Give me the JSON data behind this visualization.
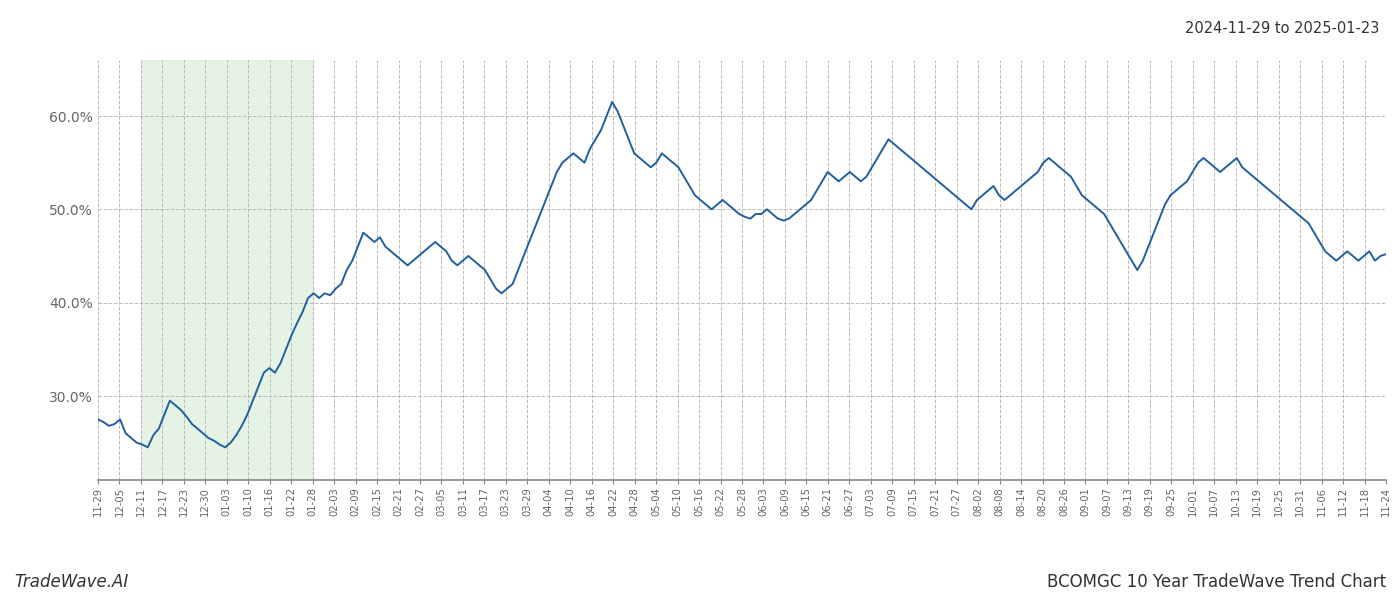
{
  "title_date_range": "2024-11-29 to 2025-01-23",
  "footer_left": "TradeWave.AI",
  "footer_right": "BCOMGC 10 Year TradeWave Trend Chart",
  "background_color": "#ffffff",
  "line_color": "#2060a0",
  "line_width": 1.4,
  "highlight_color": "#c8e6c4",
  "highlight_alpha": 0.45,
  "grid_color": "#bbbbbb",
  "grid_style": "--",
  "ylabel_color": "#666666",
  "ylim": [
    21,
    66
  ],
  "yticks": [
    30,
    40,
    50,
    60
  ],
  "x_labels": [
    "11-29",
    "12-05",
    "12-11",
    "12-17",
    "12-23",
    "12-30",
    "01-03",
    "01-10",
    "01-16",
    "01-22",
    "01-28",
    "02-03",
    "02-09",
    "02-15",
    "02-21",
    "02-27",
    "03-05",
    "03-11",
    "03-17",
    "03-23",
    "03-29",
    "04-04",
    "04-10",
    "04-16",
    "04-22",
    "04-28",
    "05-04",
    "05-10",
    "05-16",
    "05-22",
    "05-28",
    "06-03",
    "06-09",
    "06-15",
    "06-21",
    "06-27",
    "07-03",
    "07-09",
    "07-15",
    "07-21",
    "07-27",
    "08-02",
    "08-08",
    "08-14",
    "08-20",
    "08-26",
    "09-01",
    "09-07",
    "09-13",
    "09-19",
    "09-25",
    "10-01",
    "10-07",
    "10-13",
    "10-19",
    "10-25",
    "10-31",
    "11-06",
    "11-12",
    "11-18",
    "11-24"
  ],
  "highlight_x_start_label": "12-11",
  "highlight_x_end_label": "01-28",
  "values": [
    27.5,
    27.2,
    26.8,
    27.0,
    27.5,
    26.0,
    25.5,
    25.0,
    24.8,
    24.5,
    25.8,
    26.5,
    28.0,
    29.5,
    29.0,
    28.5,
    27.8,
    27.0,
    26.5,
    26.0,
    25.5,
    25.2,
    24.8,
    24.5,
    25.0,
    25.8,
    26.8,
    28.0,
    29.5,
    31.0,
    32.5,
    33.0,
    32.5,
    33.5,
    35.0,
    36.5,
    37.8,
    39.0,
    40.5,
    41.0,
    40.5,
    41.0,
    40.8,
    41.5,
    42.0,
    43.5,
    44.5,
    46.0,
    47.5,
    47.0,
    46.5,
    47.0,
    46.0,
    45.5,
    45.0,
    44.5,
    44.0,
    44.5,
    45.0,
    45.5,
    46.0,
    46.5,
    46.0,
    45.5,
    44.5,
    44.0,
    44.5,
    45.0,
    44.5,
    44.0,
    43.5,
    42.5,
    41.5,
    41.0,
    41.5,
    42.0,
    43.5,
    45.0,
    46.5,
    48.0,
    49.5,
    51.0,
    52.5,
    54.0,
    55.0,
    55.5,
    56.0,
    55.5,
    55.0,
    56.5,
    57.5,
    58.5,
    60.0,
    61.5,
    60.5,
    59.0,
    57.5,
    56.0,
    55.5,
    55.0,
    54.5,
    55.0,
    56.0,
    55.5,
    55.0,
    54.5,
    53.5,
    52.5,
    51.5,
    51.0,
    50.5,
    50.0,
    50.5,
    51.0,
    50.5,
    50.0,
    49.5,
    49.2,
    49.0,
    49.5,
    49.5,
    50.0,
    49.5,
    49.0,
    48.8,
    49.0,
    49.5,
    50.0,
    50.5,
    51.0,
    52.0,
    53.0,
    54.0,
    53.5,
    53.0,
    53.5,
    54.0,
    53.5,
    53.0,
    53.5,
    54.5,
    55.5,
    56.5,
    57.5,
    57.0,
    56.5,
    56.0,
    55.5,
    55.0,
    54.5,
    54.0,
    53.5,
    53.0,
    52.5,
    52.0,
    51.5,
    51.0,
    50.5,
    50.0,
    51.0,
    51.5,
    52.0,
    52.5,
    51.5,
    51.0,
    51.5,
    52.0,
    52.5,
    53.0,
    53.5,
    54.0,
    55.0,
    55.5,
    55.0,
    54.5,
    54.0,
    53.5,
    52.5,
    51.5,
    51.0,
    50.5,
    50.0,
    49.5,
    48.5,
    47.5,
    46.5,
    45.5,
    44.5,
    43.5,
    44.5,
    46.0,
    47.5,
    49.0,
    50.5,
    51.5,
    52.0,
    52.5,
    53.0,
    54.0,
    55.0,
    55.5,
    55.0,
    54.5,
    54.0,
    54.5,
    55.0,
    55.5,
    54.5,
    54.0,
    53.5,
    53.0,
    52.5,
    52.0,
    51.5,
    51.0,
    50.5,
    50.0,
    49.5,
    49.0,
    48.5,
    47.5,
    46.5,
    45.5,
    45.0,
    44.5,
    45.0,
    45.5,
    45.0,
    44.5,
    45.0,
    45.5,
    44.5,
    45.0,
    45.2
  ]
}
